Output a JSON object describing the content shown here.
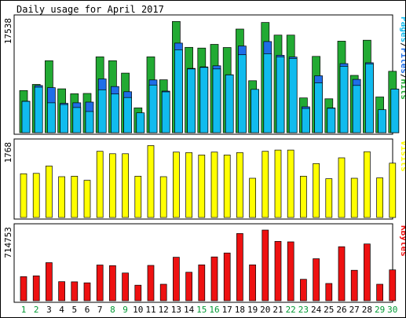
{
  "chart_data": {
    "title": "Daily usage for April 2017",
    "days": [
      "1",
      "2",
      "3",
      "4",
      "5",
      "6",
      "7",
      "8",
      "9",
      "10",
      "11",
      "12",
      "13",
      "14",
      "15",
      "16",
      "17",
      "18",
      "19",
      "20",
      "21",
      "22",
      "23",
      "24",
      "25",
      "26",
      "27",
      "28",
      "29",
      "30"
    ],
    "weekend_days": [
      "1",
      "2",
      "8",
      "9",
      "15",
      "16",
      "22",
      "23",
      "29",
      "30"
    ],
    "colors": {
      "hits": "#22aa33",
      "files": "#1f6ee8",
      "pages": "#11bbee",
      "visits": "#ffff00",
      "kbytes": "#ee1111",
      "weekday_tick": "#000000",
      "weekend_tick": "#009933"
    },
    "charts": [
      {
        "type": "bar",
        "name": "pages_files_hits",
        "ymax_label": "17538",
        "ymax": 17538,
        "ylabel_parts": [
          {
            "text": "Pages",
            "color": "#11bbee"
          },
          {
            "text": "/",
            "color": "#000000"
          },
          {
            "text": "Files",
            "color": "#1f6ee8"
          },
          {
            "text": "/",
            "color": "#000000"
          },
          {
            "text": "Hits",
            "color": "#22aa33"
          }
        ],
        "series": [
          {
            "name": "Hits",
            "color": "#22aa33",
            "values": [
              6630,
              7590,
              11330,
              6910,
              6120,
              6170,
              11930,
              11330,
              9370,
              3900,
              11930,
              8330,
              17500,
              13430,
              13320,
              13900,
              13400,
              16300,
              8180,
              17340,
              15350,
              15350,
              5470,
              12000,
              5340,
              14400,
              9010,
              14550,
              5620,
              9660
            ]
          },
          {
            "name": "Files",
            "color": "#1f6ee8",
            "values": [
              4950,
              7420,
              7090,
              4620,
              4700,
              4820,
              8460,
              7260,
              6450,
              2750,
              8300,
              6540,
              14090,
              10110,
              10350,
              10520,
              9110,
              13640,
              6740,
              14340,
              12180,
              11900,
              4080,
              8950,
              3890,
              10870,
              8390,
              11010,
              2970,
              6850
            ]
          },
          {
            "name": "Pages",
            "color": "#11bbee",
            "values": [
              4930,
              7160,
              4710,
              4440,
              3970,
              3340,
              6760,
              6090,
              5530,
              3120,
              7500,
              6420,
              13040,
              10030,
              10270,
              10030,
              9090,
              12260,
              6820,
              12430,
              11930,
              11680,
              3820,
              7840,
              3840,
              10450,
              7440,
              10830,
              3620,
              6850
            ]
          }
        ]
      },
      {
        "type": "bar",
        "name": "visits",
        "ymax_label": "1768",
        "ymax": 1768,
        "ylabel_parts": [
          {
            "text": "Visits",
            "color": "#ffff00"
          }
        ],
        "series": [
          {
            "name": "Visits",
            "color": "#ffff00",
            "values": [
              1070,
              1080,
              1260,
              1000,
              1010,
              910,
              1620,
              1560,
              1560,
              1010,
              1760,
              1000,
              1600,
              1590,
              1530,
              1600,
              1530,
              1590,
              960,
              1620,
              1650,
              1650,
              1010,
              1320,
              950,
              1460,
              960,
              1610,
              970,
              1330
            ]
          }
        ]
      },
      {
        "type": "bar",
        "name": "kbytes",
        "ymax_label": "714753",
        "ymax": 714753,
        "ylabel_parts": [
          {
            "text": "KBytes",
            "color": "#ee1111"
          }
        ],
        "series": [
          {
            "name": "KBytes",
            "color": "#ee1111",
            "values": [
              244000,
              252000,
              385000,
              193000,
              191000,
              181000,
              361000,
              355000,
              280000,
              157000,
              357000,
              167000,
              440000,
              288000,
              363000,
              443000,
              483000,
              680000,
              363000,
              714753,
              600000,
              596000,
              217000,
              425000,
              175000,
              546000,
              308000,
              574000,
              167000,
              312000
            ]
          }
        ]
      }
    ]
  }
}
